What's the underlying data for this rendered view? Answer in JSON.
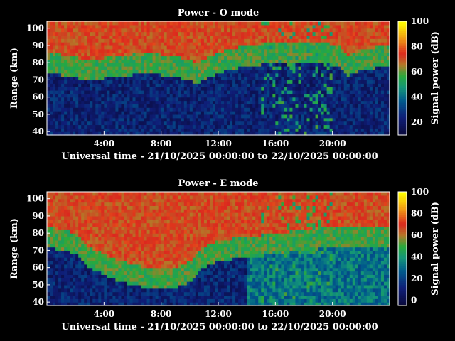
{
  "chart_data": [
    {
      "type": "heatmap",
      "title": "Power - O mode",
      "xlabel": "Universal time - 21/10/2025 00:00:00 to 22/10/2025 00:00:00",
      "ylabel": "Range (km)",
      "x_tick_labels": [
        "4:00",
        "8:00",
        "12:00",
        "16:00",
        "20:00"
      ],
      "x_ticks_hours": [
        4,
        8,
        12,
        16,
        20
      ],
      "xlim_hours": [
        0,
        24
      ],
      "y_ticks": [
        40,
        50,
        60,
        70,
        80,
        90,
        100
      ],
      "ylim": [
        38,
        104
      ],
      "colorbar": {
        "label": "Signal power (dB)",
        "ticks": [
          20,
          40,
          60,
          80,
          100
        ],
        "range": [
          10,
          100
        ]
      },
      "description_pattern": {
        "lower_boundary_km": [
          [
            0,
            75
          ],
          [
            1.5,
            72
          ],
          [
            3,
            70
          ],
          [
            5,
            72
          ],
          [
            7,
            74
          ],
          [
            9,
            72
          ],
          [
            10.5,
            68
          ],
          [
            12,
            74
          ],
          [
            13,
            76
          ],
          [
            14,
            78
          ],
          [
            15,
            79
          ],
          [
            17,
            80
          ],
          [
            19,
            80
          ],
          [
            20.5,
            78
          ],
          [
            21,
            72
          ],
          [
            22,
            76
          ],
          [
            24,
            78
          ]
        ],
        "upper_layer_power_db": 60
      }
    },
    {
      "type": "heatmap",
      "title": "Power - E mode",
      "xlabel": "Universal time - 21/10/2025 00:00:00 to 22/10/2025 00:00:00",
      "ylabel": "Range (km)",
      "x_tick_labels": [
        "4:00",
        "8:00",
        "12:00",
        "16:00",
        "20:00"
      ],
      "x_ticks_hours": [
        4,
        8,
        12,
        16,
        20
      ],
      "xlim_hours": [
        0,
        24
      ],
      "y_ticks": [
        40,
        50,
        60,
        70,
        80,
        90,
        100
      ],
      "ylim": [
        38,
        104
      ],
      "colorbar": {
        "label": "Signal power (dB)",
        "ticks": [
          0,
          20,
          40,
          60,
          80,
          100
        ],
        "range": [
          -5,
          100
        ]
      },
      "description_pattern": {
        "lower_boundary_km": [
          [
            0,
            72
          ],
          [
            1,
            70
          ],
          [
            2,
            68
          ],
          [
            3,
            60
          ],
          [
            5,
            52
          ],
          [
            7,
            48
          ],
          [
            9,
            48
          ],
          [
            10,
            52
          ],
          [
            11,
            60
          ],
          [
            12,
            64
          ],
          [
            14,
            66
          ],
          [
            16,
            68
          ],
          [
            18,
            70
          ],
          [
            20,
            72
          ],
          [
            22,
            72
          ],
          [
            24,
            72
          ]
        ],
        "upper_layer_power_db": 60
      }
    }
  ]
}
